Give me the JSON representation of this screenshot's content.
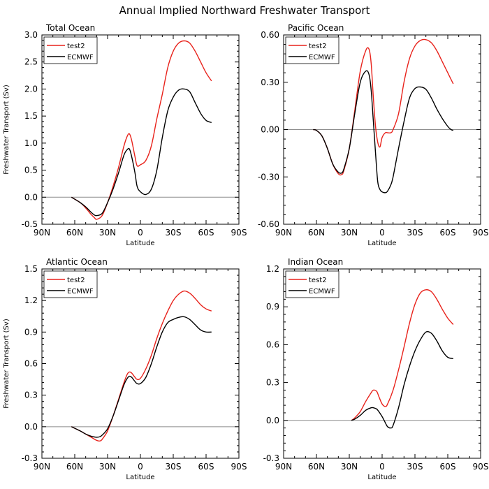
{
  "title": "Annual Implied Northward Freshwater Transport",
  "chart_data": [
    {
      "type": "line",
      "title": "Total Ocean",
      "xlabel": "Latitude",
      "ylabel": "Freshwater Transport (Sv)",
      "xlim": [
        90,
        -90
      ],
      "ylim": [
        -0.5,
        3.0
      ],
      "x_ticks": [
        90,
        60,
        30,
        0,
        -30,
        -60,
        -90
      ],
      "x_tick_labels": [
        "90N",
        "60N",
        "30N",
        "0",
        "30S",
        "60S",
        "90S"
      ],
      "y_ticks": [
        "-0.5",
        "0.0",
        "0.5",
        "1.0",
        "1.5",
        "2.0",
        "2.5",
        "3.0"
      ],
      "zero_line": true,
      "legend": "top-left",
      "series": [
        {
          "name": "test2",
          "color": "#e8221b",
          "x": [
            63,
            55,
            50,
            45,
            42,
            40,
            35,
            30,
            25,
            20,
            15,
            12,
            10,
            8,
            5,
            3,
            0,
            -5,
            -10,
            -15,
            -20,
            -25,
            -30,
            -35,
            -40,
            -45,
            -50,
            -55,
            -60,
            -65
          ],
          "y": [
            0.0,
            -0.1,
            -0.2,
            -0.32,
            -0.38,
            -0.41,
            -0.34,
            -0.1,
            0.2,
            0.55,
            0.95,
            1.13,
            1.17,
            1.05,
            0.75,
            0.58,
            0.6,
            0.68,
            0.95,
            1.45,
            1.9,
            2.4,
            2.7,
            2.85,
            2.89,
            2.85,
            2.7,
            2.5,
            2.3,
            2.15
          ]
        },
        {
          "name": "ECMWF",
          "color": "#000000",
          "x": [
            63,
            55,
            50,
            45,
            42,
            40,
            35,
            30,
            25,
            20,
            15,
            12,
            10,
            8,
            5,
            3,
            0,
            -5,
            -10,
            -15,
            -20,
            -25,
            -30,
            -35,
            -40,
            -45,
            -50,
            -55,
            -60,
            -65
          ],
          "y": [
            0.0,
            -0.1,
            -0.18,
            -0.28,
            -0.33,
            -0.34,
            -0.3,
            -0.1,
            0.15,
            0.45,
            0.78,
            0.88,
            0.89,
            0.75,
            0.45,
            0.2,
            0.1,
            0.05,
            0.15,
            0.5,
            1.1,
            1.6,
            1.85,
            1.98,
            2.0,
            1.95,
            1.75,
            1.55,
            1.42,
            1.38
          ]
        }
      ]
    },
    {
      "type": "line",
      "title": "Pacific Ocean",
      "xlabel": "Latitude",
      "ylabel": "",
      "xlim": [
        90,
        -90
      ],
      "ylim": [
        -0.6,
        0.6
      ],
      "x_ticks": [
        90,
        60,
        30,
        0,
        -30,
        -60,
        -90
      ],
      "x_tick_labels": [
        "90N",
        "60N",
        "30N",
        "0",
        "30S",
        "60S",
        "90S"
      ],
      "y_ticks": [
        "-0.60",
        "-0.30",
        "0.00",
        "0.30",
        "0.60"
      ],
      "zero_line": true,
      "legend": "top-left",
      "series": [
        {
          "name": "test2",
          "color": "#e8221b",
          "x": [
            63,
            60,
            55,
            50,
            45,
            40,
            37,
            35,
            30,
            25,
            20,
            15,
            12,
            10,
            8,
            6,
            4,
            2,
            0,
            -3,
            -5,
            -8,
            -10,
            -15,
            -20,
            -25,
            -30,
            -35,
            -40,
            -45,
            -50,
            -55,
            -60,
            -65
          ],
          "y": [
            0.0,
            -0.005,
            -0.04,
            -0.12,
            -0.22,
            -0.28,
            -0.285,
            -0.26,
            -0.12,
            0.12,
            0.37,
            0.5,
            0.51,
            0.42,
            0.2,
            0.02,
            -0.08,
            -0.11,
            -0.05,
            -0.02,
            -0.02,
            -0.02,
            0.0,
            0.1,
            0.3,
            0.45,
            0.53,
            0.565,
            0.57,
            0.55,
            0.5,
            0.43,
            0.36,
            0.29
          ]
        },
        {
          "name": "ECMWF",
          "color": "#000000",
          "x": [
            63,
            60,
            55,
            50,
            45,
            40,
            37,
            35,
            30,
            25,
            20,
            15,
            12,
            10,
            8,
            6,
            4,
            2,
            0,
            -3,
            -5,
            -8,
            -10,
            -15,
            -20,
            -25,
            -30,
            -35,
            -40,
            -45,
            -50,
            -55,
            -60,
            -63,
            -65
          ],
          "y": [
            0.0,
            -0.005,
            -0.04,
            -0.12,
            -0.22,
            -0.27,
            -0.275,
            -0.25,
            -0.12,
            0.1,
            0.3,
            0.37,
            0.35,
            0.25,
            0.05,
            -0.15,
            -0.33,
            -0.38,
            -0.395,
            -0.4,
            -0.39,
            -0.35,
            -0.3,
            -0.12,
            0.05,
            0.2,
            0.26,
            0.27,
            0.255,
            0.2,
            0.13,
            0.07,
            0.02,
            0.0,
            -0.005
          ]
        }
      ]
    },
    {
      "type": "line",
      "title": "Atlantic Ocean",
      "xlabel": "Latitude",
      "ylabel": "Freshwater Transport (Sv)",
      "xlim": [
        90,
        -90
      ],
      "ylim": [
        -0.3,
        1.5
      ],
      "x_ticks": [
        90,
        60,
        30,
        0,
        -30,
        -60,
        -90
      ],
      "x_tick_labels": [
        "90N",
        "60N",
        "30N",
        "0",
        "30S",
        "60S",
        "90S"
      ],
      "y_ticks": [
        "-0.3",
        "0.0",
        "0.3",
        "0.6",
        "0.9",
        "1.2",
        "1.5"
      ],
      "zero_line": true,
      "legend": "top-left",
      "series": [
        {
          "name": "test2",
          "color": "#e8221b",
          "x": [
            63,
            55,
            50,
            45,
            40,
            37,
            35,
            30,
            25,
            20,
            15,
            12,
            10,
            8,
            5,
            3,
            0,
            -5,
            -10,
            -15,
            -20,
            -25,
            -30,
            -35,
            -40,
            -45,
            -50,
            -55,
            -60,
            -65
          ],
          "y": [
            0.0,
            -0.04,
            -0.07,
            -0.1,
            -0.13,
            -0.135,
            -0.12,
            -0.04,
            0.1,
            0.26,
            0.42,
            0.5,
            0.52,
            0.51,
            0.47,
            0.45,
            0.46,
            0.55,
            0.68,
            0.84,
            0.98,
            1.1,
            1.2,
            1.26,
            1.29,
            1.27,
            1.22,
            1.16,
            1.12,
            1.1
          ]
        },
        {
          "name": "ECMWF",
          "color": "#000000",
          "x": [
            63,
            55,
            50,
            45,
            40,
            37,
            35,
            30,
            25,
            20,
            15,
            12,
            10,
            8,
            5,
            3,
            0,
            -5,
            -10,
            -15,
            -20,
            -25,
            -30,
            -35,
            -40,
            -45,
            -50,
            -55,
            -60,
            -65
          ],
          "y": [
            0.0,
            -0.04,
            -0.07,
            -0.09,
            -0.1,
            -0.095,
            -0.08,
            -0.02,
            0.1,
            0.25,
            0.4,
            0.46,
            0.48,
            0.47,
            0.43,
            0.41,
            0.41,
            0.47,
            0.6,
            0.76,
            0.9,
            0.99,
            1.02,
            1.04,
            1.045,
            1.02,
            0.97,
            0.92,
            0.9,
            0.9
          ]
        }
      ]
    },
    {
      "type": "line",
      "title": "Indian Ocean",
      "xlabel": "Latitude",
      "ylabel": "",
      "xlim": [
        90,
        -90
      ],
      "ylim": [
        -0.3,
        1.2
      ],
      "x_ticks": [
        90,
        60,
        30,
        0,
        -30,
        -60,
        -90
      ],
      "x_tick_labels": [
        "90N",
        "60N",
        "30N",
        "0",
        "30S",
        "60S",
        "90S"
      ],
      "y_ticks": [
        "-0.3",
        "0.0",
        "0.3",
        "0.6",
        "0.9",
        "1.2"
      ],
      "zero_line": true,
      "legend": "top-left",
      "series": [
        {
          "name": "test2",
          "color": "#e8221b",
          "x": [
            28,
            25,
            20,
            15,
            10,
            8,
            5,
            3,
            0,
            -3,
            -5,
            -10,
            -15,
            -20,
            -25,
            -30,
            -35,
            -40,
            -45,
            -50,
            -55,
            -60,
            -65
          ],
          "y": [
            0.0,
            0.02,
            0.07,
            0.15,
            0.22,
            0.24,
            0.23,
            0.19,
            0.13,
            0.11,
            0.13,
            0.24,
            0.4,
            0.58,
            0.77,
            0.92,
            1.01,
            1.035,
            1.02,
            0.96,
            0.88,
            0.81,
            0.76
          ]
        },
        {
          "name": "ECMWF",
          "color": "#000000",
          "x": [
            28,
            25,
            20,
            15,
            10,
            8,
            5,
            3,
            0,
            -3,
            -5,
            -8,
            -10,
            -15,
            -20,
            -25,
            -30,
            -35,
            -40,
            -45,
            -50,
            -55,
            -60,
            -65
          ],
          "y": [
            0.0,
            0.01,
            0.04,
            0.08,
            0.1,
            0.1,
            0.09,
            0.07,
            0.03,
            -0.02,
            -0.05,
            -0.06,
            -0.04,
            0.1,
            0.28,
            0.43,
            0.55,
            0.64,
            0.7,
            0.69,
            0.63,
            0.55,
            0.5,
            0.49
          ]
        }
      ]
    }
  ]
}
